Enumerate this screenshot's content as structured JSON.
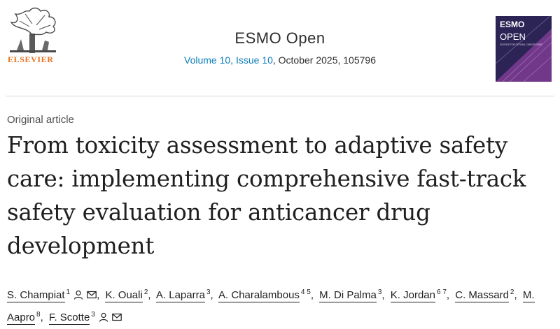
{
  "header": {
    "publisher": "ELSEVIER",
    "journal_title": "ESMO Open",
    "volume_link": "Volume 10, Issue 10",
    "issue_rest": ", October 2025, 105796",
    "cover_brand": "ESMO",
    "cover_subtitle": "OPEN",
    "cover_tagline": "SCIENCE FOR OPTIMAL CANCER CARE"
  },
  "article": {
    "type": "Original article",
    "title": "From toxicity assessment to adaptive safety care: implementing comprehensive fast-track safety evaluation for anticancer drug development"
  },
  "authors": [
    {
      "name": "S. Champiat",
      "sup": "1",
      "icons": [
        "person-icon",
        "mail-icon"
      ]
    },
    {
      "name": "K. Ouali",
      "sup": "2",
      "icons": []
    },
    {
      "name": "A. Laparra",
      "sup": "3",
      "icons": []
    },
    {
      "name": "A. Charalambous",
      "sup": "4 5",
      "icons": []
    },
    {
      "name": "M. Di Palma",
      "sup": "3",
      "icons": []
    },
    {
      "name": "K. Jordan",
      "sup": "6 7",
      "icons": []
    },
    {
      "name": "C. Massard",
      "sup": "2",
      "icons": []
    },
    {
      "name": "M. Aapro",
      "sup": "8",
      "icons": []
    },
    {
      "name": "F. Scotte",
      "sup": "3",
      "icons": [
        "person-icon",
        "mail-icon"
      ]
    }
  ],
  "colors": {
    "link": "#0c7dbb",
    "publisher_orange": "#e9711c",
    "cover_navy": "#2b2454",
    "cover_purple": "#8a3f9c"
  }
}
